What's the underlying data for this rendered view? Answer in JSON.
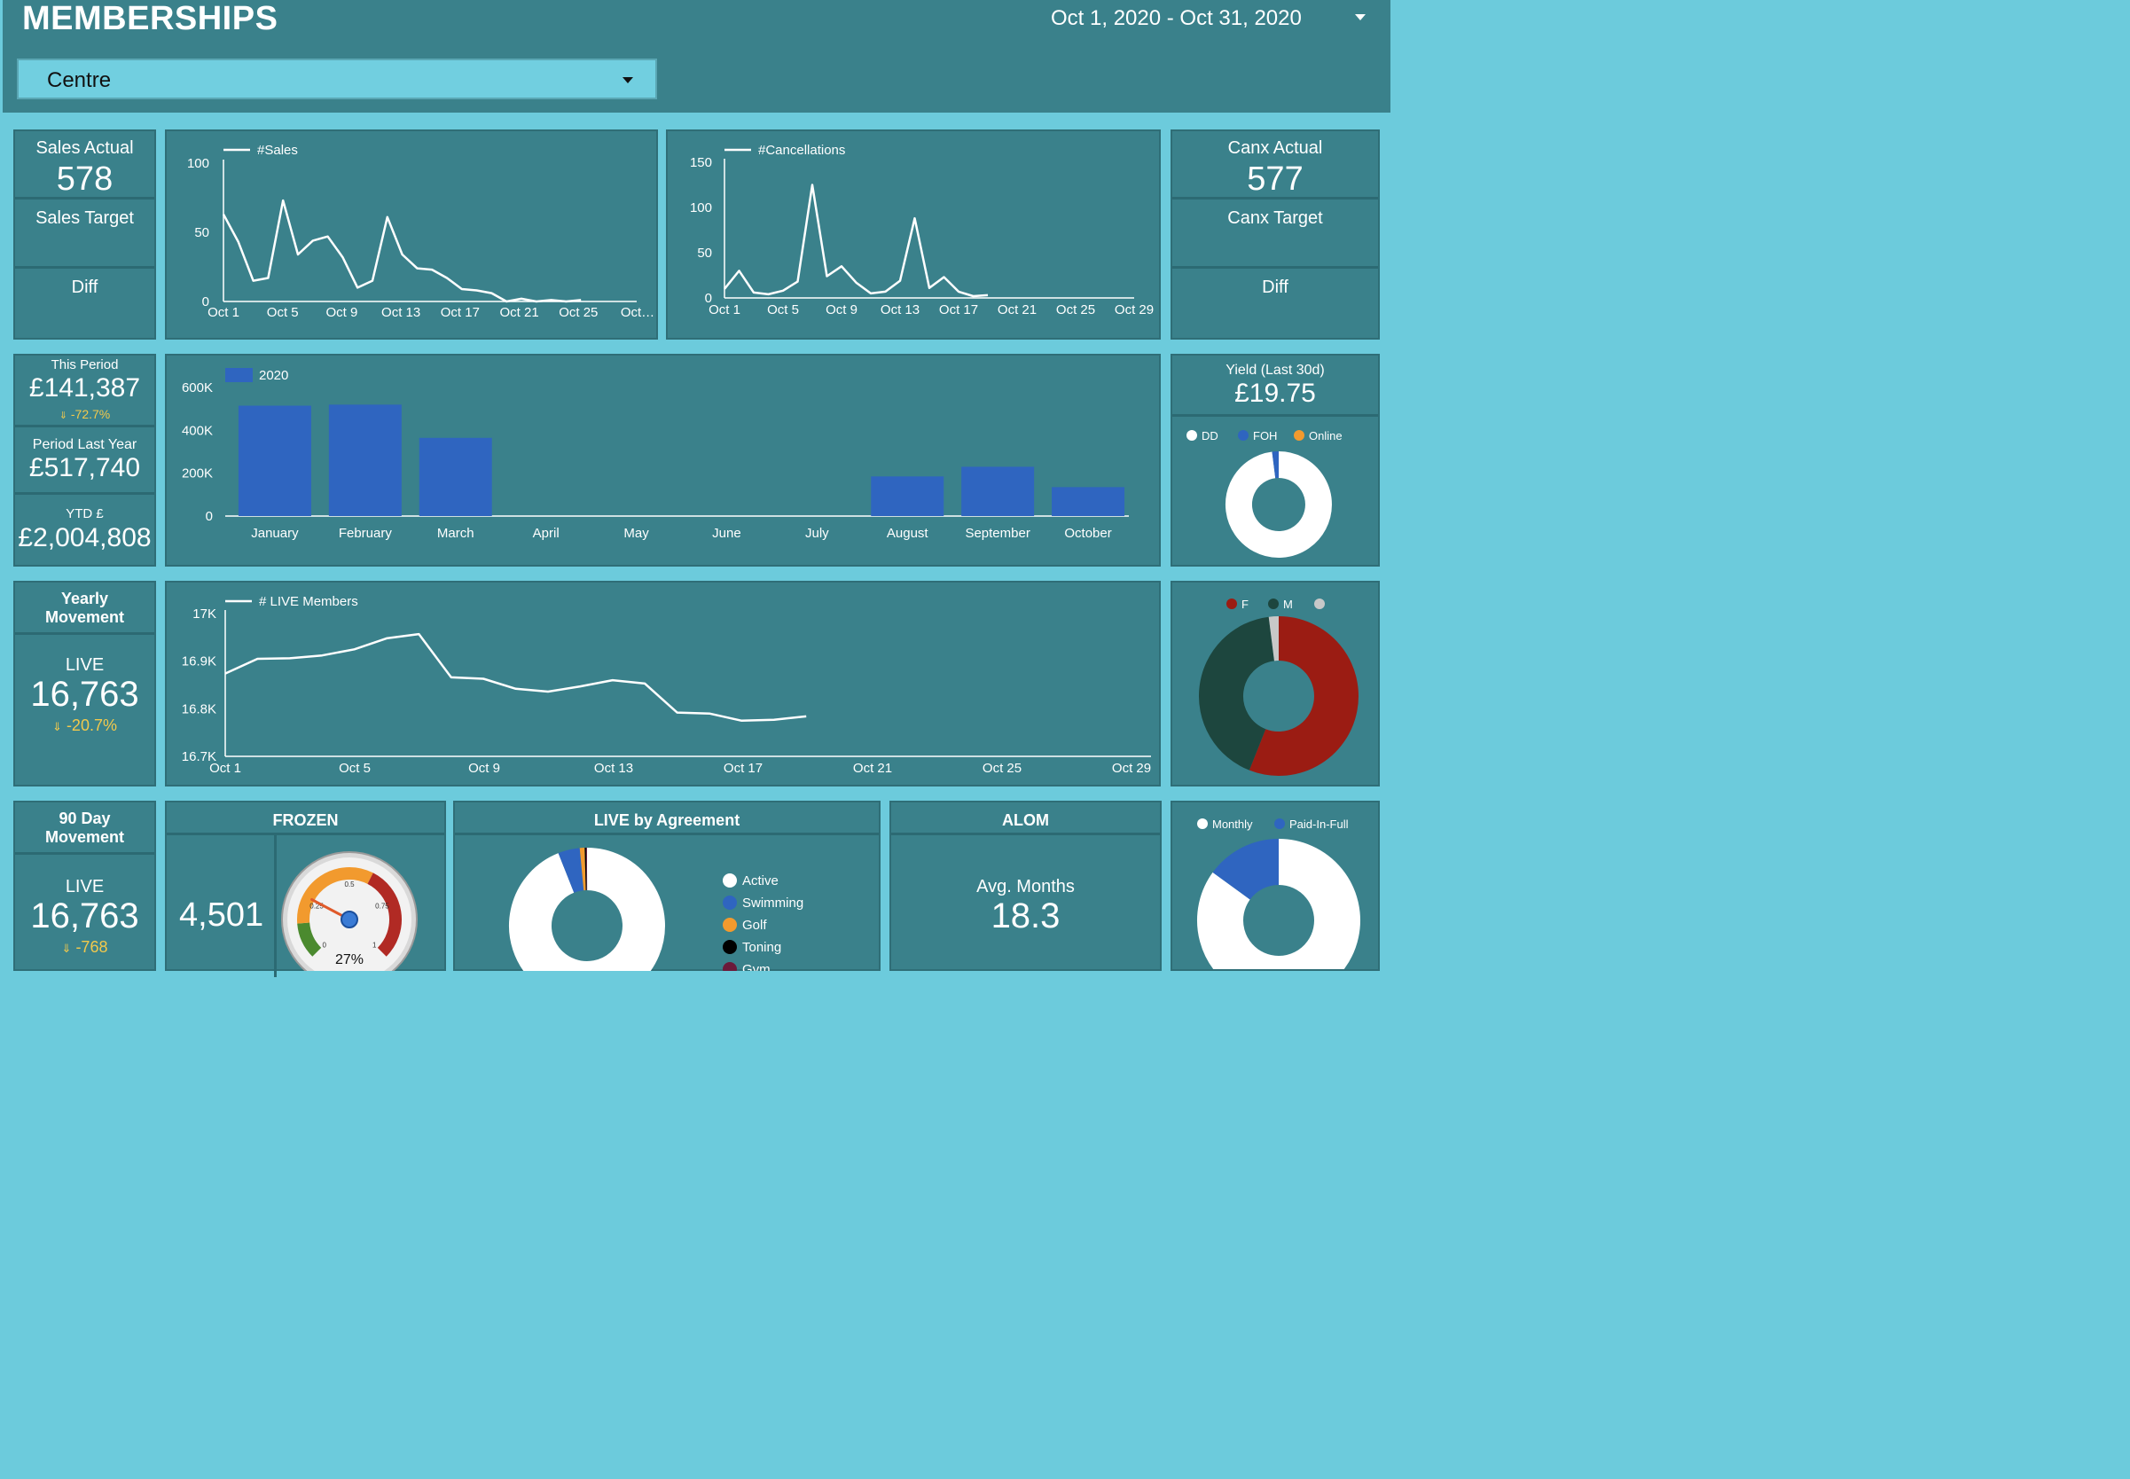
{
  "header": {
    "title": "MEMBERSHIPS",
    "date_range": "Oct 1, 2020 - Oct 31, 2020",
    "centre_filter": "Centre"
  },
  "sales_kpi": {
    "actual_label": "Sales Actual",
    "actual_value": "578",
    "target_label": "Sales Target",
    "diff_label": "Diff"
  },
  "canx_kpi": {
    "actual_label": "Canx Actual",
    "actual_value": "577",
    "target_label": "Canx Target",
    "diff_label": "Diff"
  },
  "revenue": {
    "this_period_label": "This Period",
    "this_period_value": "£141,387",
    "this_period_change": "-72.7%",
    "last_year_label": "Period Last Year",
    "last_year_value": "£517,740",
    "ytd_label": "YTD £",
    "ytd_value": "£2,004,808"
  },
  "yield": {
    "label": "Yield (Last 30d)",
    "value": "£19.75"
  },
  "yearly": {
    "title": "Yearly Movement",
    "live_label": "LIVE",
    "live_value": "16,763",
    "change": "-20.7%"
  },
  "ninety": {
    "title": "90 Day Movement",
    "live_label": "LIVE",
    "live_value": "16,763",
    "change": "-768"
  },
  "frozen": {
    "title": "FROZEN",
    "value": "4,501",
    "gauge_value": "27%"
  },
  "agreement": {
    "title": "LIVE by Agreement"
  },
  "alom": {
    "title": "ALOM",
    "label": "Avg. Months",
    "value": "18.3"
  },
  "colors": {
    "panel": "#3a818b",
    "background": "#6ccbdc",
    "bar_blue": "#2f65c0",
    "female_red": "#9b1c13",
    "male_green": "#1d463e",
    "online_orange": "#f29a2e"
  },
  "chart_data": [
    {
      "type": "line",
      "title": "#Sales",
      "legend": [
        "#Sales"
      ],
      "x_ticks": [
        "Oct 1",
        "Oct 5",
        "Oct 9",
        "Oct 13",
        "Oct 17",
        "Oct 21",
        "Oct 25",
        "Oct…"
      ],
      "y_ticks": [
        "0",
        "50",
        "100"
      ],
      "ylim": [
        0,
        100
      ],
      "values": [
        63,
        43,
        15,
        17,
        73,
        34,
        44,
        47,
        32,
        10,
        15,
        61,
        34,
        24,
        23,
        17,
        9,
        8,
        6,
        0,
        2,
        0,
        1,
        0,
        1
      ]
    },
    {
      "type": "line",
      "title": "#Cancellations",
      "legend": [
        "#Cancellations"
      ],
      "x_ticks": [
        "Oct 1",
        "Oct 5",
        "Oct 9",
        "Oct 13",
        "Oct 17",
        "Oct 21",
        "Oct 25",
        "Oct 29"
      ],
      "y_ticks": [
        "0",
        "50",
        "100",
        "150"
      ],
      "ylim": [
        0,
        150
      ],
      "values": [
        10,
        30,
        6,
        4,
        8,
        18,
        125,
        24,
        35,
        17,
        5,
        7,
        19,
        88,
        11,
        23,
        7,
        2,
        3
      ]
    },
    {
      "type": "bar",
      "legend": [
        "2020"
      ],
      "categories": [
        "January",
        "February",
        "March",
        "April",
        "May",
        "June",
        "July",
        "August",
        "September",
        "October"
      ],
      "values": [
        515000,
        520000,
        365000,
        0,
        0,
        0,
        0,
        185000,
        230000,
        135000
      ],
      "y_ticks": [
        "0",
        "200K",
        "400K",
        "600K"
      ],
      "ylim": [
        0,
        600000
      ]
    },
    {
      "type": "line",
      "title": "# LIVE Members",
      "legend": [
        "# LIVE Members"
      ],
      "x_ticks": [
        "Oct 1",
        "Oct 5",
        "Oct 9",
        "Oct 13",
        "Oct 17",
        "Oct 21",
        "Oct 25",
        "Oct 29"
      ],
      "y_ticks": [
        "16.7K",
        "16.8K",
        "16.9K",
        "17K"
      ],
      "ylim": [
        16700,
        17000
      ],
      "values": [
        16874,
        16905,
        16906,
        16912,
        16925,
        16948,
        16957,
        16866,
        16863,
        16842,
        16836,
        16847,
        16860,
        16853,
        16792,
        16790,
        16775,
        16777,
        16784
      ]
    },
    {
      "type": "pie",
      "subtype": "donut",
      "legend": [
        "DD",
        "FOH",
        "Online"
      ],
      "values": [
        98,
        2,
        0
      ]
    },
    {
      "type": "pie",
      "subtype": "donut",
      "legend": [
        "F",
        "M",
        ""
      ],
      "values": [
        56,
        42,
        2
      ]
    },
    {
      "type": "pie",
      "subtype": "donut",
      "legend": [
        "Active",
        "Swimming",
        "Golf",
        "Toning",
        "Gym"
      ],
      "values": [
        94,
        4.5,
        1,
        0.3,
        0.2
      ]
    },
    {
      "type": "pie",
      "subtype": "donut",
      "legend": [
        "Monthly",
        "Paid-In-Full"
      ],
      "values": [
        85,
        15
      ]
    },
    {
      "type": "gauge",
      "value": 0.27,
      "label": "27%",
      "ticks": [
        "0",
        "0.25",
        "0.5",
        "0.75",
        "1"
      ]
    }
  ]
}
